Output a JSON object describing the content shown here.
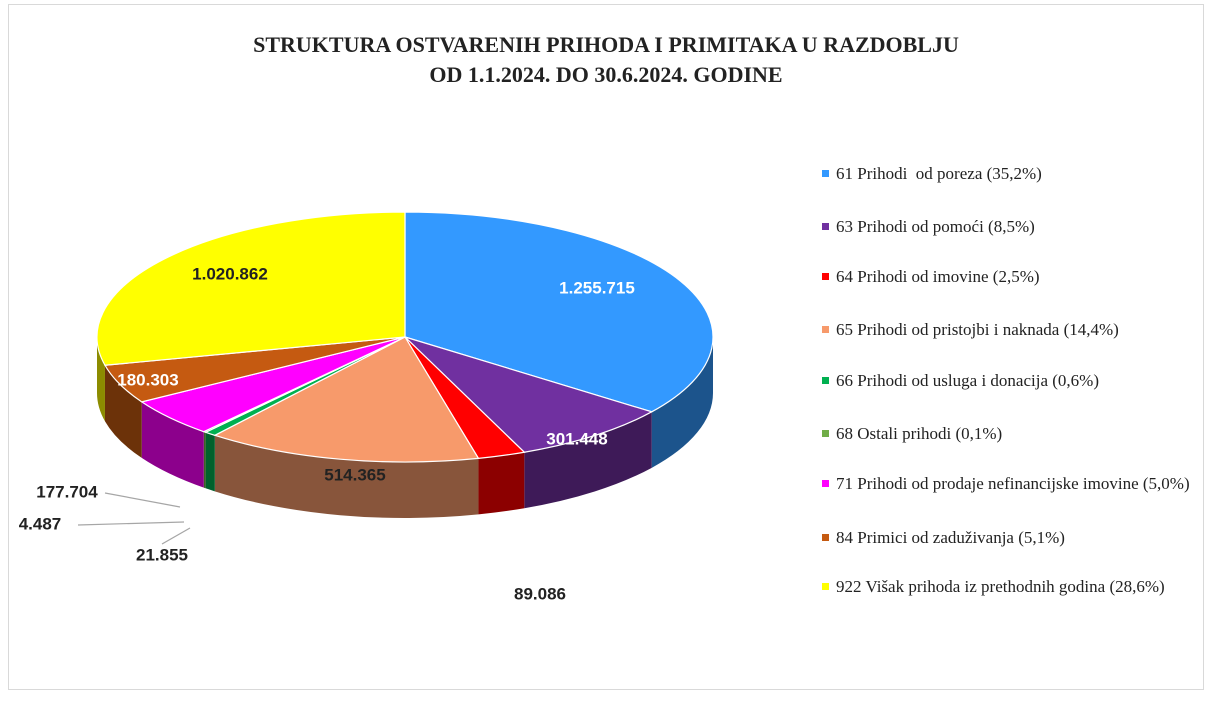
{
  "chart_data": {
    "type": "pie",
    "title": [
      "STRUKTURA OSTVARENIH PRIHODA I PRIMITAKA U RAZDOBLJU",
      "OD 1.1.2024. DO 30.6.2024. GODINE"
    ],
    "categories": [
      "61 Prihodi  od poreza (35,2%)",
      "63 Prihodi od pomoći (8,5%)",
      "64 Prihodi od imovine (2,5%)",
      "65 Prihodi od pristojbi i naknada (14,4%)",
      "66 Prihodi od usluga i donacija (0,6%)",
      "68 Ostali prihodi (0,1%)",
      "71 Prihodi od prodaje nefinancijske imovine (5,0%)",
      "84 Primici od zaduživanja (5,1%)",
      "922 Višak prihoda iz prethodnih godina (28,6%)"
    ],
    "values": [
      1255715,
      301448,
      89086,
      514365,
      21855,
      4487,
      177704,
      180303,
      1020862
    ],
    "value_labels": [
      "1.255.715",
      "301.448",
      "89.086",
      "514.365",
      "21.855",
      "4.487",
      "177.704",
      "180.303",
      "1.020.862"
    ],
    "colors": [
      "#3399ff",
      "#7030a0",
      "#ff0000",
      "#f79a6b",
      "#00b050",
      "#70ad47",
      "#ff00ff",
      "#c55a11",
      "#ffff00"
    ],
    "legend": "right"
  }
}
